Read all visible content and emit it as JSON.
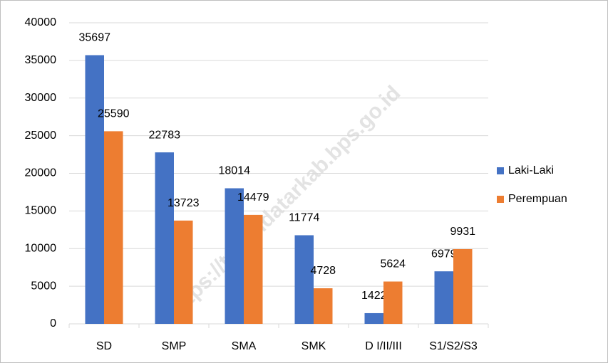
{
  "chart_data": {
    "type": "bar",
    "categories": [
      "SD",
      "SMP",
      "SMA",
      "SMK",
      "D I/II/III",
      "S1/S2/S3"
    ],
    "series": [
      {
        "name": "Laki-Laki",
        "color": "#4472c4",
        "values": [
          35697,
          22783,
          18014,
          11774,
          1422,
          6979
        ]
      },
      {
        "name": "Perempuan",
        "color": "#ed7d31",
        "values": [
          25590,
          13723,
          14479,
          4728,
          5624,
          9931
        ]
      }
    ],
    "ylim": [
      0,
      40000
    ],
    "yticks": [
      0,
      5000,
      10000,
      15000,
      20000,
      25000,
      30000,
      35000,
      40000
    ],
    "grid": true,
    "legend": "right",
    "data_labels": true,
    "watermark": "https://tanahdatarkab.bps.go.id"
  }
}
